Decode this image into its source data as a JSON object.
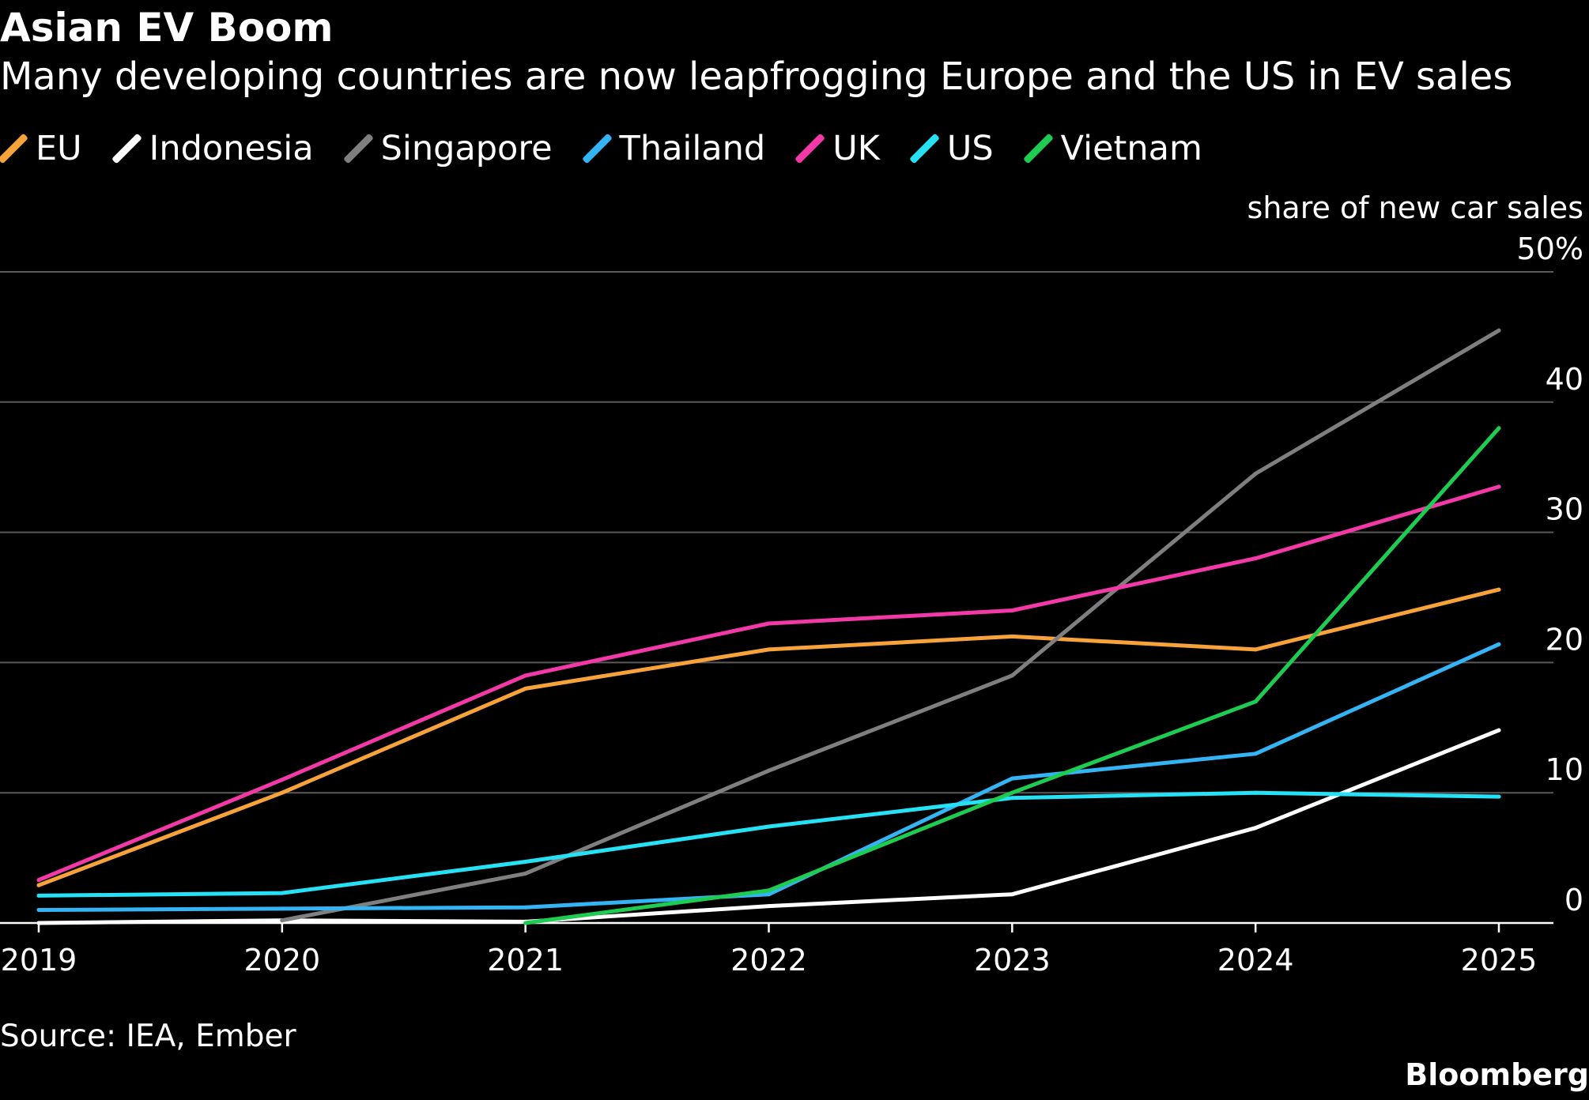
{
  "chart_data": {
    "type": "line",
    "title": "Asian EV Boom",
    "subtitle": "Many developing countries are now leapfrogging Europe and the US in EV sales",
    "ylabel": "share of new car sales",
    "y_unit_suffix": "%",
    "ylim": [
      0,
      50
    ],
    "yticks": [
      0,
      10,
      20,
      30,
      40,
      50
    ],
    "x": [
      "2019",
      "2020",
      "2021",
      "2022",
      "2023",
      "2024",
      "2025"
    ],
    "grid": true,
    "legend_position": "top",
    "y_axis_side": "right",
    "background": "#000000",
    "series": [
      {
        "name": "EU",
        "color": "#f8a23a",
        "values": [
          2.9,
          10.0,
          18.0,
          21.0,
          22.0,
          21.0,
          25.6
        ]
      },
      {
        "name": "Indonesia",
        "color": "#ffffff",
        "values": [
          0.0,
          0.2,
          0.1,
          1.3,
          2.2,
          7.3,
          14.8
        ]
      },
      {
        "name": "Singapore",
        "color": "#7f7f7f",
        "values": [
          null,
          0.2,
          3.8,
          11.7,
          19.0,
          34.5,
          45.5
        ]
      },
      {
        "name": "Thailand",
        "color": "#34b4f5",
        "values": [
          1.0,
          1.1,
          1.2,
          2.2,
          11.1,
          13.0,
          21.4
        ]
      },
      {
        "name": "UK",
        "color": "#f339a8",
        "values": [
          3.3,
          11.0,
          19.0,
          23.0,
          24.0,
          28.0,
          33.5
        ]
      },
      {
        "name": "US",
        "color": "#26e1f5",
        "values": [
          2.1,
          2.3,
          4.7,
          7.4,
          9.6,
          10.0,
          9.7
        ]
      },
      {
        "name": "Vietnam",
        "color": "#1ecc52",
        "values": [
          null,
          null,
          0.0,
          2.5,
          10.0,
          17.0,
          38.0
        ]
      }
    ]
  },
  "footer": {
    "source": "Source: IEA, Ember",
    "brand": "Bloomberg"
  }
}
